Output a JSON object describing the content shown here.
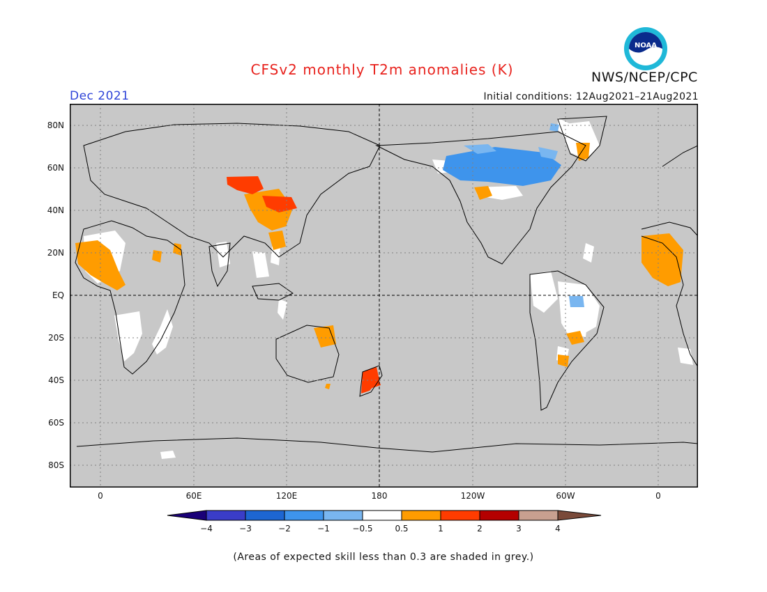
{
  "title": "CFSv2 monthly T2m anomalies (K)",
  "org": "NWS/NCEP/CPC",
  "logo_text": "NOAA",
  "month": "Dec 2021",
  "initial_conditions": "Initial conditions: 12Aug2021–21Aug2021",
  "footer": "(Areas of expected skill less than 0.3 are shaded in grey.)",
  "axes": {
    "y_labels": [
      "80N",
      "60N",
      "40N",
      "20N",
      "EQ",
      "20S",
      "40S",
      "60S",
      "80S"
    ],
    "x_labels": [
      "0",
      "60E",
      "120E",
      "180",
      "120W",
      "60W",
      "0"
    ]
  },
  "colorbar": {
    "labels": [
      "−4",
      "−3",
      "−2",
      "−1",
      "−0.5",
      "0.5",
      "1",
      "2",
      "3",
      "4"
    ],
    "colors": [
      "#1a0078",
      "#3a3dc8",
      "#1d66d2",
      "#3e94ec",
      "#79b6f0",
      "#ffffff",
      "#ff9c00",
      "#ff3c00",
      "#b40000",
      "#c8a090",
      "#7a4a3a"
    ]
  },
  "colors": {
    "grey_mask": "#c8c8c8",
    "warm_anomaly": "#ff9c00",
    "hot_anomaly": "#ff3c00",
    "cool_anomaly": "#3e94ec",
    "light_cool_anomaly": "#79b6f0",
    "near_normal": "#ffffff"
  }
}
